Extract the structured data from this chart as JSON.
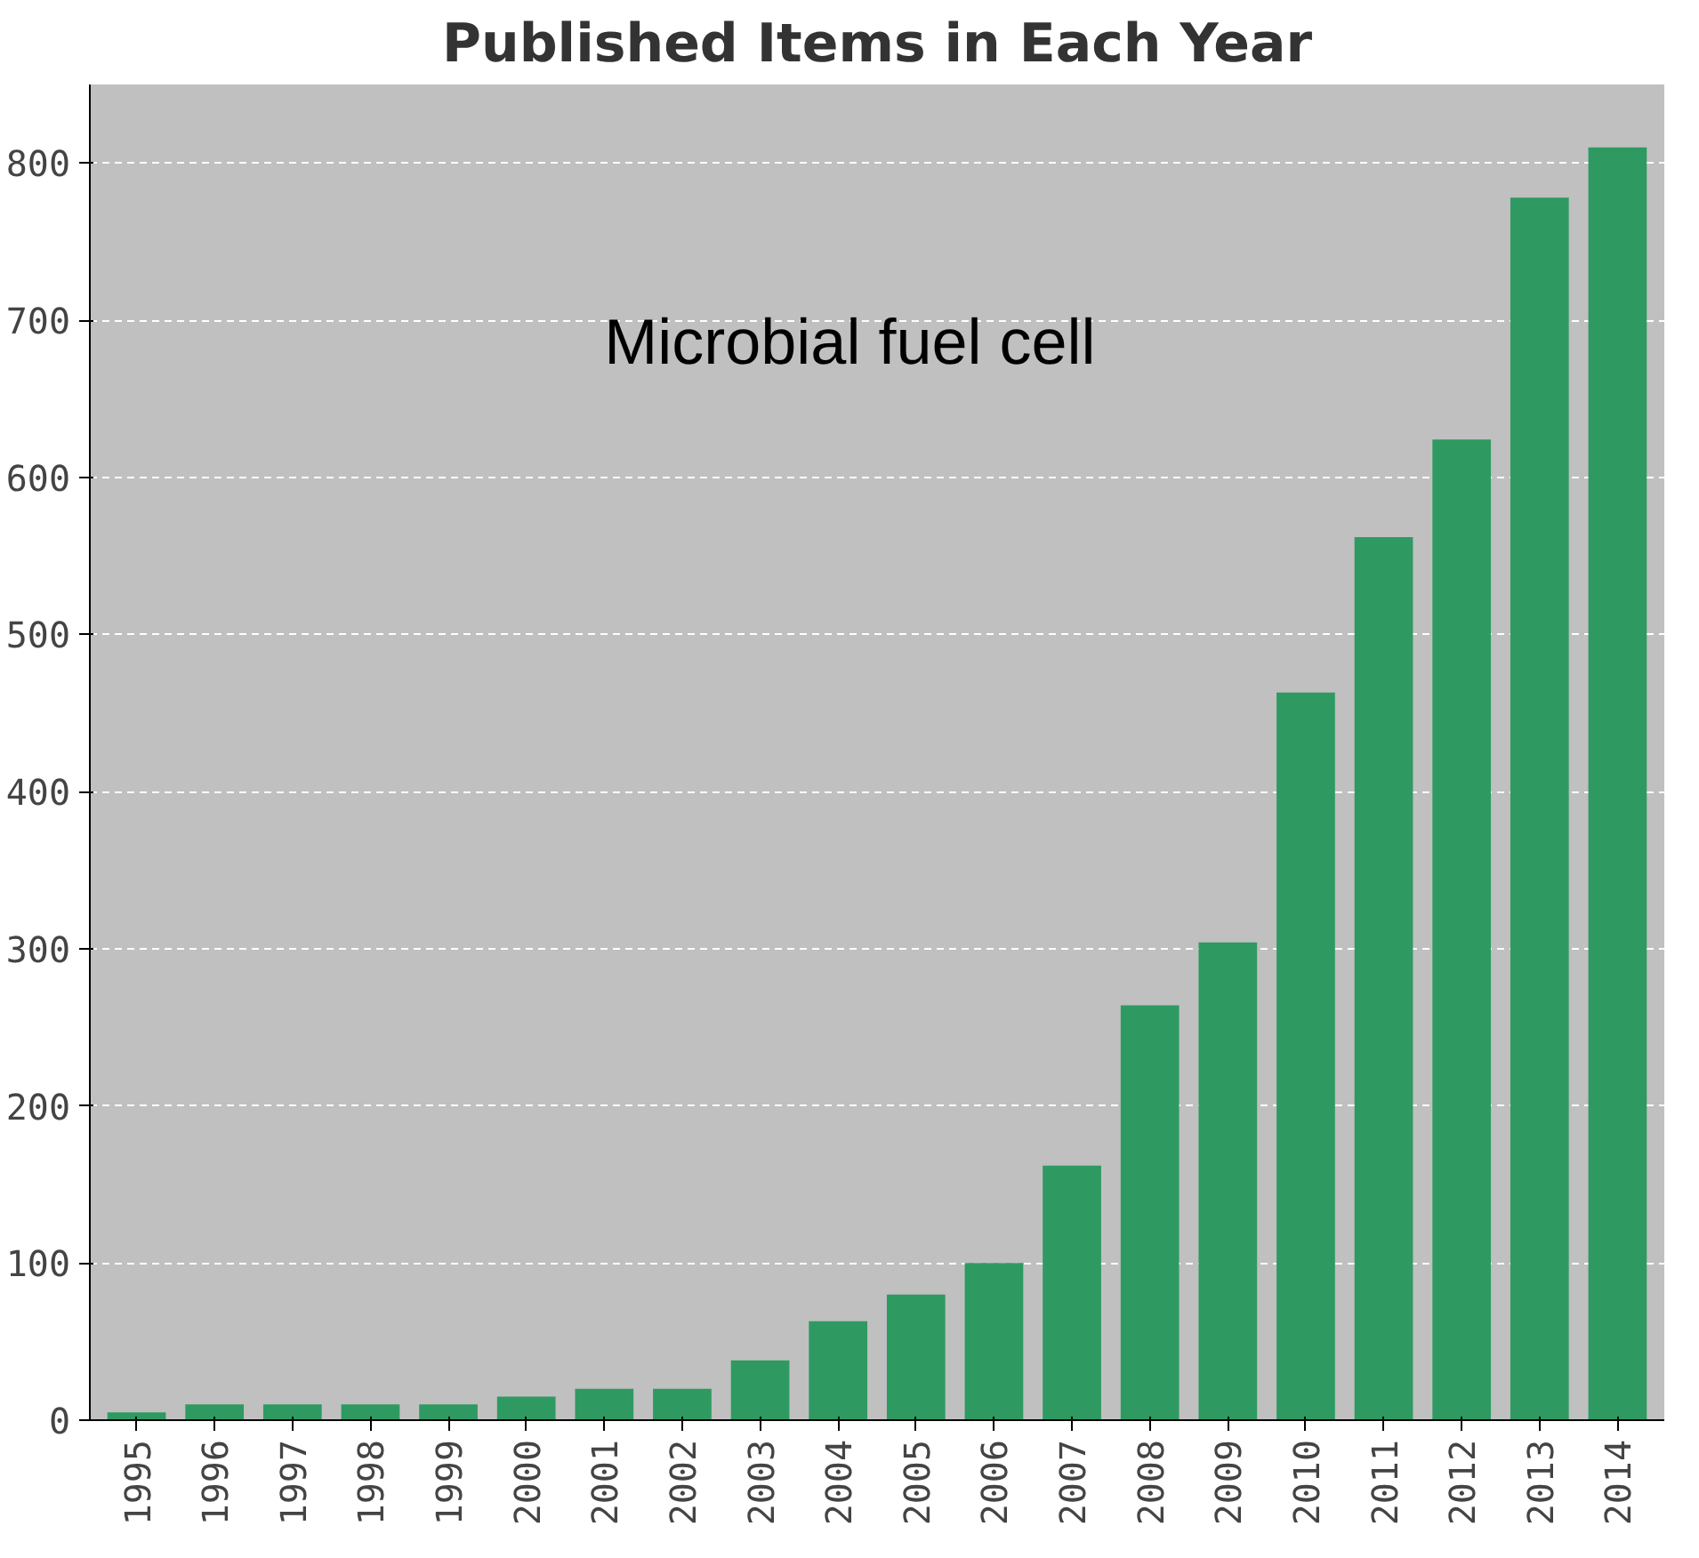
{
  "chart_data": {
    "type": "bar",
    "title": "Published Items in Each Year",
    "categories": [
      "1995",
      "1996",
      "1997",
      "1998",
      "1999",
      "2000",
      "2001",
      "2002",
      "2003",
      "2004",
      "2005",
      "2006",
      "2007",
      "2008",
      "2009",
      "2010",
      "2011",
      "2012",
      "2013",
      "2014"
    ],
    "values": [
      5,
      10,
      10,
      10,
      10,
      15,
      20,
      20,
      38,
      63,
      80,
      100,
      162,
      264,
      304,
      463,
      562,
      624,
      778,
      810
    ],
    "color": "#2e9a62",
    "ylim": [
      0,
      850
    ],
    "yticks": [
      0,
      100,
      200,
      300,
      400,
      500,
      600,
      700,
      800
    ],
    "grid": "y",
    "annotations": [
      "Microbial fuel cell"
    ]
  }
}
